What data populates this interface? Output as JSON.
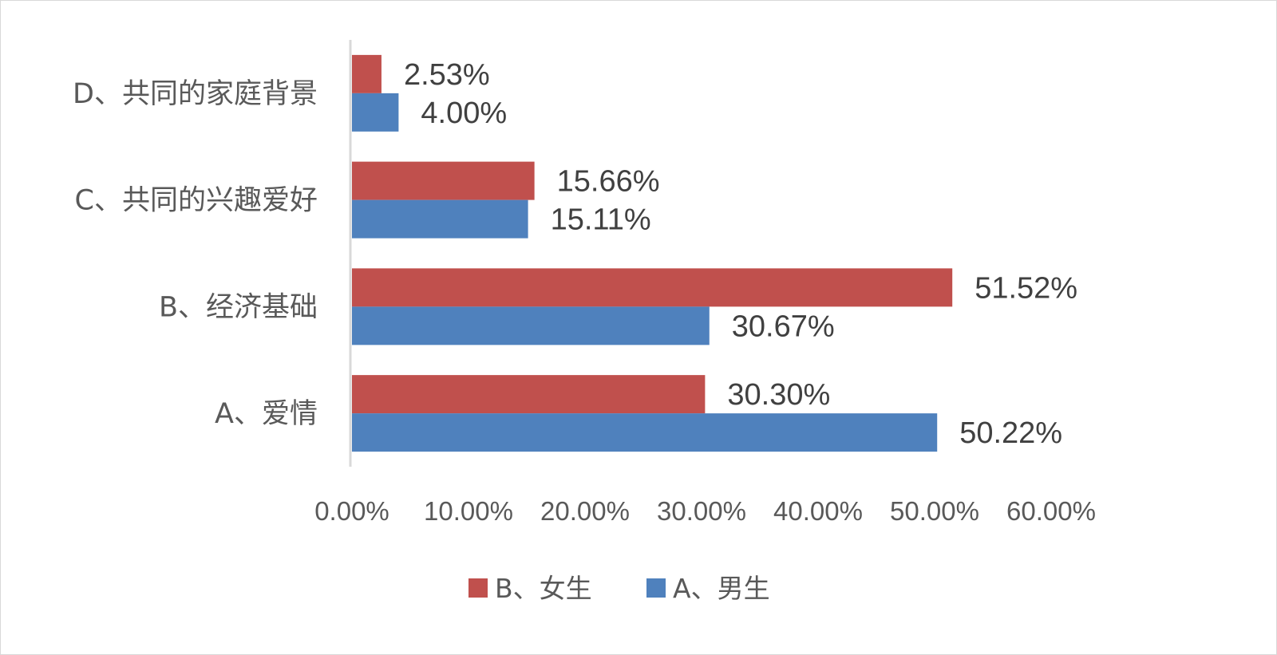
{
  "chart_data": {
    "type": "bar",
    "orientation": "horizontal",
    "categories": [
      "A、爱情",
      "B、经济基础",
      "C、共同的兴趣爱好",
      "D、共同的家庭背景"
    ],
    "series": [
      {
        "name": "A、男生",
        "color": "#4f81bd",
        "values": [
          50.22,
          30.67,
          15.11,
          4.0
        ],
        "labels": [
          "50.22%",
          "30.67%",
          "15.11%",
          "4.00%"
        ]
      },
      {
        "name": "B、女生",
        "color": "#c0504d",
        "values": [
          30.3,
          51.52,
          15.66,
          2.53
        ],
        "labels": [
          "30.30%",
          "51.52%",
          "15.66%",
          "2.53%"
        ]
      }
    ],
    "xlim": [
      0,
      60
    ],
    "x_ticks": [
      0,
      10,
      20,
      30,
      40,
      50,
      60
    ],
    "x_tick_labels": [
      "0.00%",
      "10.00%",
      "20.00%",
      "30.00%",
      "40.00%",
      "50.00%",
      "60.00%"
    ],
    "legend_position": "bottom",
    "legend_order": [
      "B、女生",
      "A、男生"
    ],
    "grid": false
  }
}
